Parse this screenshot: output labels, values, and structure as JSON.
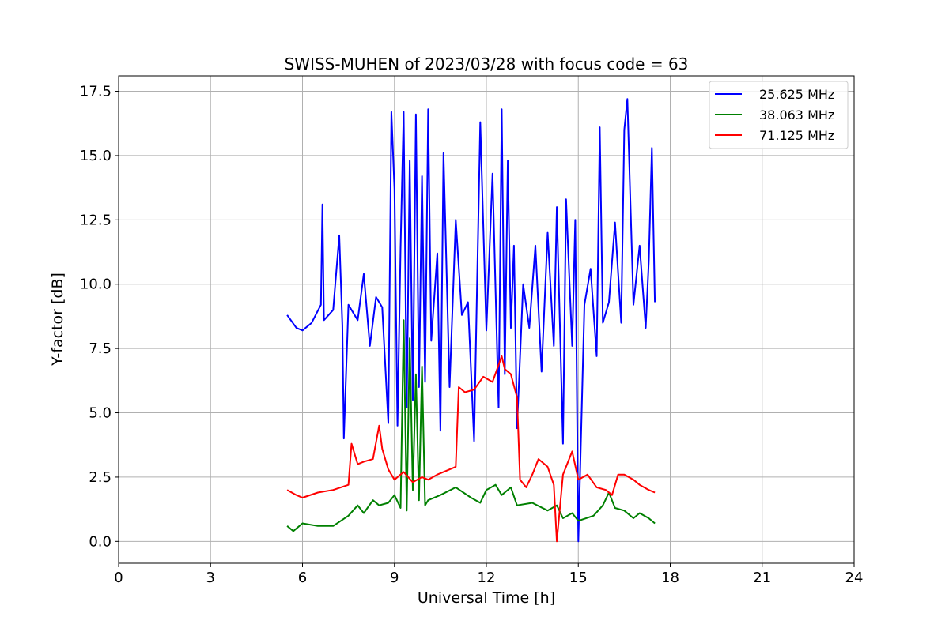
{
  "chart_data": {
    "type": "line",
    "title": "SWISS-MUHEN of 2023/03/28 with focus code = 63",
    "xlabel": "Universal Time [h]",
    "ylabel": "Y-factor [dB]",
    "xlim": [
      0,
      24
    ],
    "ylim": [
      -0.85,
      18.1
    ],
    "xticks": [
      0,
      3,
      6,
      9,
      12,
      15,
      18,
      21,
      24
    ],
    "xtick_labels": [
      "0",
      "3",
      "6",
      "9",
      "12",
      "15",
      "18",
      "21",
      "24"
    ],
    "yticks": [
      0.0,
      2.5,
      5.0,
      7.5,
      10.0,
      12.5,
      15.0,
      17.5
    ],
    "ytick_labels": [
      "0.0",
      "2.5",
      "5.0",
      "7.5",
      "10.0",
      "12.5",
      "15.0",
      "17.5"
    ],
    "grid": true,
    "legend_position": "top-right",
    "series": [
      {
        "name": "25.625 MHz",
        "color": "#0000ff",
        "x": [
          5.5,
          5.8,
          6.0,
          6.3,
          6.6,
          6.65,
          6.7,
          7.0,
          7.2,
          7.3,
          7.35,
          7.5,
          7.8,
          8.0,
          8.2,
          8.4,
          8.6,
          8.8,
          8.9,
          9.0,
          9.1,
          9.2,
          9.3,
          9.4,
          9.5,
          9.6,
          9.7,
          9.8,
          9.9,
          10.0,
          10.1,
          10.2,
          10.4,
          10.5,
          10.6,
          10.8,
          11.0,
          11.2,
          11.4,
          11.6,
          11.7,
          11.8,
          12.0,
          12.2,
          12.4,
          12.5,
          12.6,
          12.7,
          12.8,
          12.9,
          13.0,
          13.2,
          13.4,
          13.6,
          13.8,
          14.0,
          14.2,
          14.3,
          14.5,
          14.6,
          14.8,
          14.9,
          15.0,
          15.2,
          15.4,
          15.6,
          15.7,
          15.8,
          16.0,
          16.2,
          16.4,
          16.5,
          16.6,
          16.8,
          17.0,
          17.2,
          17.3,
          17.4,
          17.5
        ],
        "y": [
          8.8,
          8.3,
          8.2,
          8.5,
          9.2,
          13.1,
          8.6,
          9.0,
          11.9,
          8.4,
          4.0,
          9.2,
          8.6,
          10.4,
          7.6,
          9.5,
          9.1,
          4.6,
          16.7,
          13.7,
          4.5,
          11.4,
          16.7,
          5.2,
          14.8,
          5.5,
          16.6,
          6.0,
          14.2,
          6.2,
          16.8,
          7.8,
          11.2,
          4.3,
          15.1,
          6.0,
          12.5,
          8.8,
          9.3,
          3.9,
          10.2,
          16.3,
          8.2,
          14.3,
          5.2,
          16.8,
          6.5,
          14.8,
          8.3,
          11.5,
          4.4,
          10.0,
          8.3,
          11.5,
          6.6,
          12.0,
          7.6,
          13.0,
          3.8,
          13.3,
          7.6,
          12.5,
          0.0,
          9.2,
          10.6,
          7.2,
          16.1,
          8.5,
          9.3,
          12.4,
          8.5,
          16.0,
          17.2,
          9.2,
          11.5,
          8.3,
          10.9,
          15.3,
          9.3
        ]
      },
      {
        "name": "38.063 MHz",
        "color": "#008000",
        "x": [
          5.5,
          5.7,
          6.0,
          6.5,
          7.0,
          7.5,
          7.8,
          8.0,
          8.3,
          8.5,
          8.8,
          9.0,
          9.2,
          9.3,
          9.4,
          9.5,
          9.6,
          9.7,
          9.8,
          9.9,
          10.0,
          10.1,
          10.5,
          11.0,
          11.5,
          11.8,
          12.0,
          12.3,
          12.5,
          12.8,
          13.0,
          13.5,
          14.0,
          14.3,
          14.5,
          14.8,
          15.0,
          15.5,
          15.8,
          16.0,
          16.2,
          16.5,
          16.8,
          17.0,
          17.3,
          17.5
        ],
        "y": [
          0.6,
          0.4,
          0.7,
          0.6,
          0.6,
          1.0,
          1.4,
          1.1,
          1.6,
          1.4,
          1.5,
          1.8,
          1.3,
          8.6,
          1.2,
          7.9,
          2.0,
          6.5,
          1.6,
          6.8,
          1.4,
          1.6,
          1.8,
          2.1,
          1.7,
          1.5,
          2.0,
          2.2,
          1.8,
          2.1,
          1.4,
          1.5,
          1.2,
          1.4,
          0.9,
          1.1,
          0.8,
          1.0,
          1.4,
          1.9,
          1.3,
          1.2,
          0.9,
          1.1,
          0.9,
          0.7
        ]
      },
      {
        "name": "71.125 MHz",
        "color": "#ff0000",
        "x": [
          5.5,
          5.8,
          6.0,
          6.5,
          7.0,
          7.5,
          7.6,
          7.8,
          8.0,
          8.3,
          8.5,
          8.6,
          8.8,
          9.0,
          9.3,
          9.6,
          9.9,
          10.1,
          10.4,
          10.8,
          11.0,
          11.1,
          11.3,
          11.6,
          11.9,
          12.2,
          12.5,
          12.6,
          12.8,
          13.0,
          13.1,
          13.3,
          13.5,
          13.7,
          14.0,
          14.2,
          14.3,
          14.5,
          14.8,
          15.0,
          15.3,
          15.6,
          15.9,
          16.1,
          16.3,
          16.5,
          16.8,
          17.0,
          17.3,
          17.5
        ],
        "y": [
          2.0,
          1.8,
          1.7,
          1.9,
          2.0,
          2.2,
          3.8,
          3.0,
          3.1,
          3.2,
          4.5,
          3.6,
          2.8,
          2.4,
          2.7,
          2.3,
          2.5,
          2.4,
          2.6,
          2.8,
          2.9,
          6.0,
          5.8,
          5.9,
          6.4,
          6.2,
          7.2,
          6.7,
          6.5,
          5.6,
          2.4,
          2.1,
          2.6,
          3.2,
          2.9,
          2.2,
          0.0,
          2.6,
          3.5,
          2.4,
          2.6,
          2.1,
          2.0,
          1.8,
          2.6,
          2.6,
          2.4,
          2.2,
          2.0,
          1.9
        ]
      }
    ]
  }
}
